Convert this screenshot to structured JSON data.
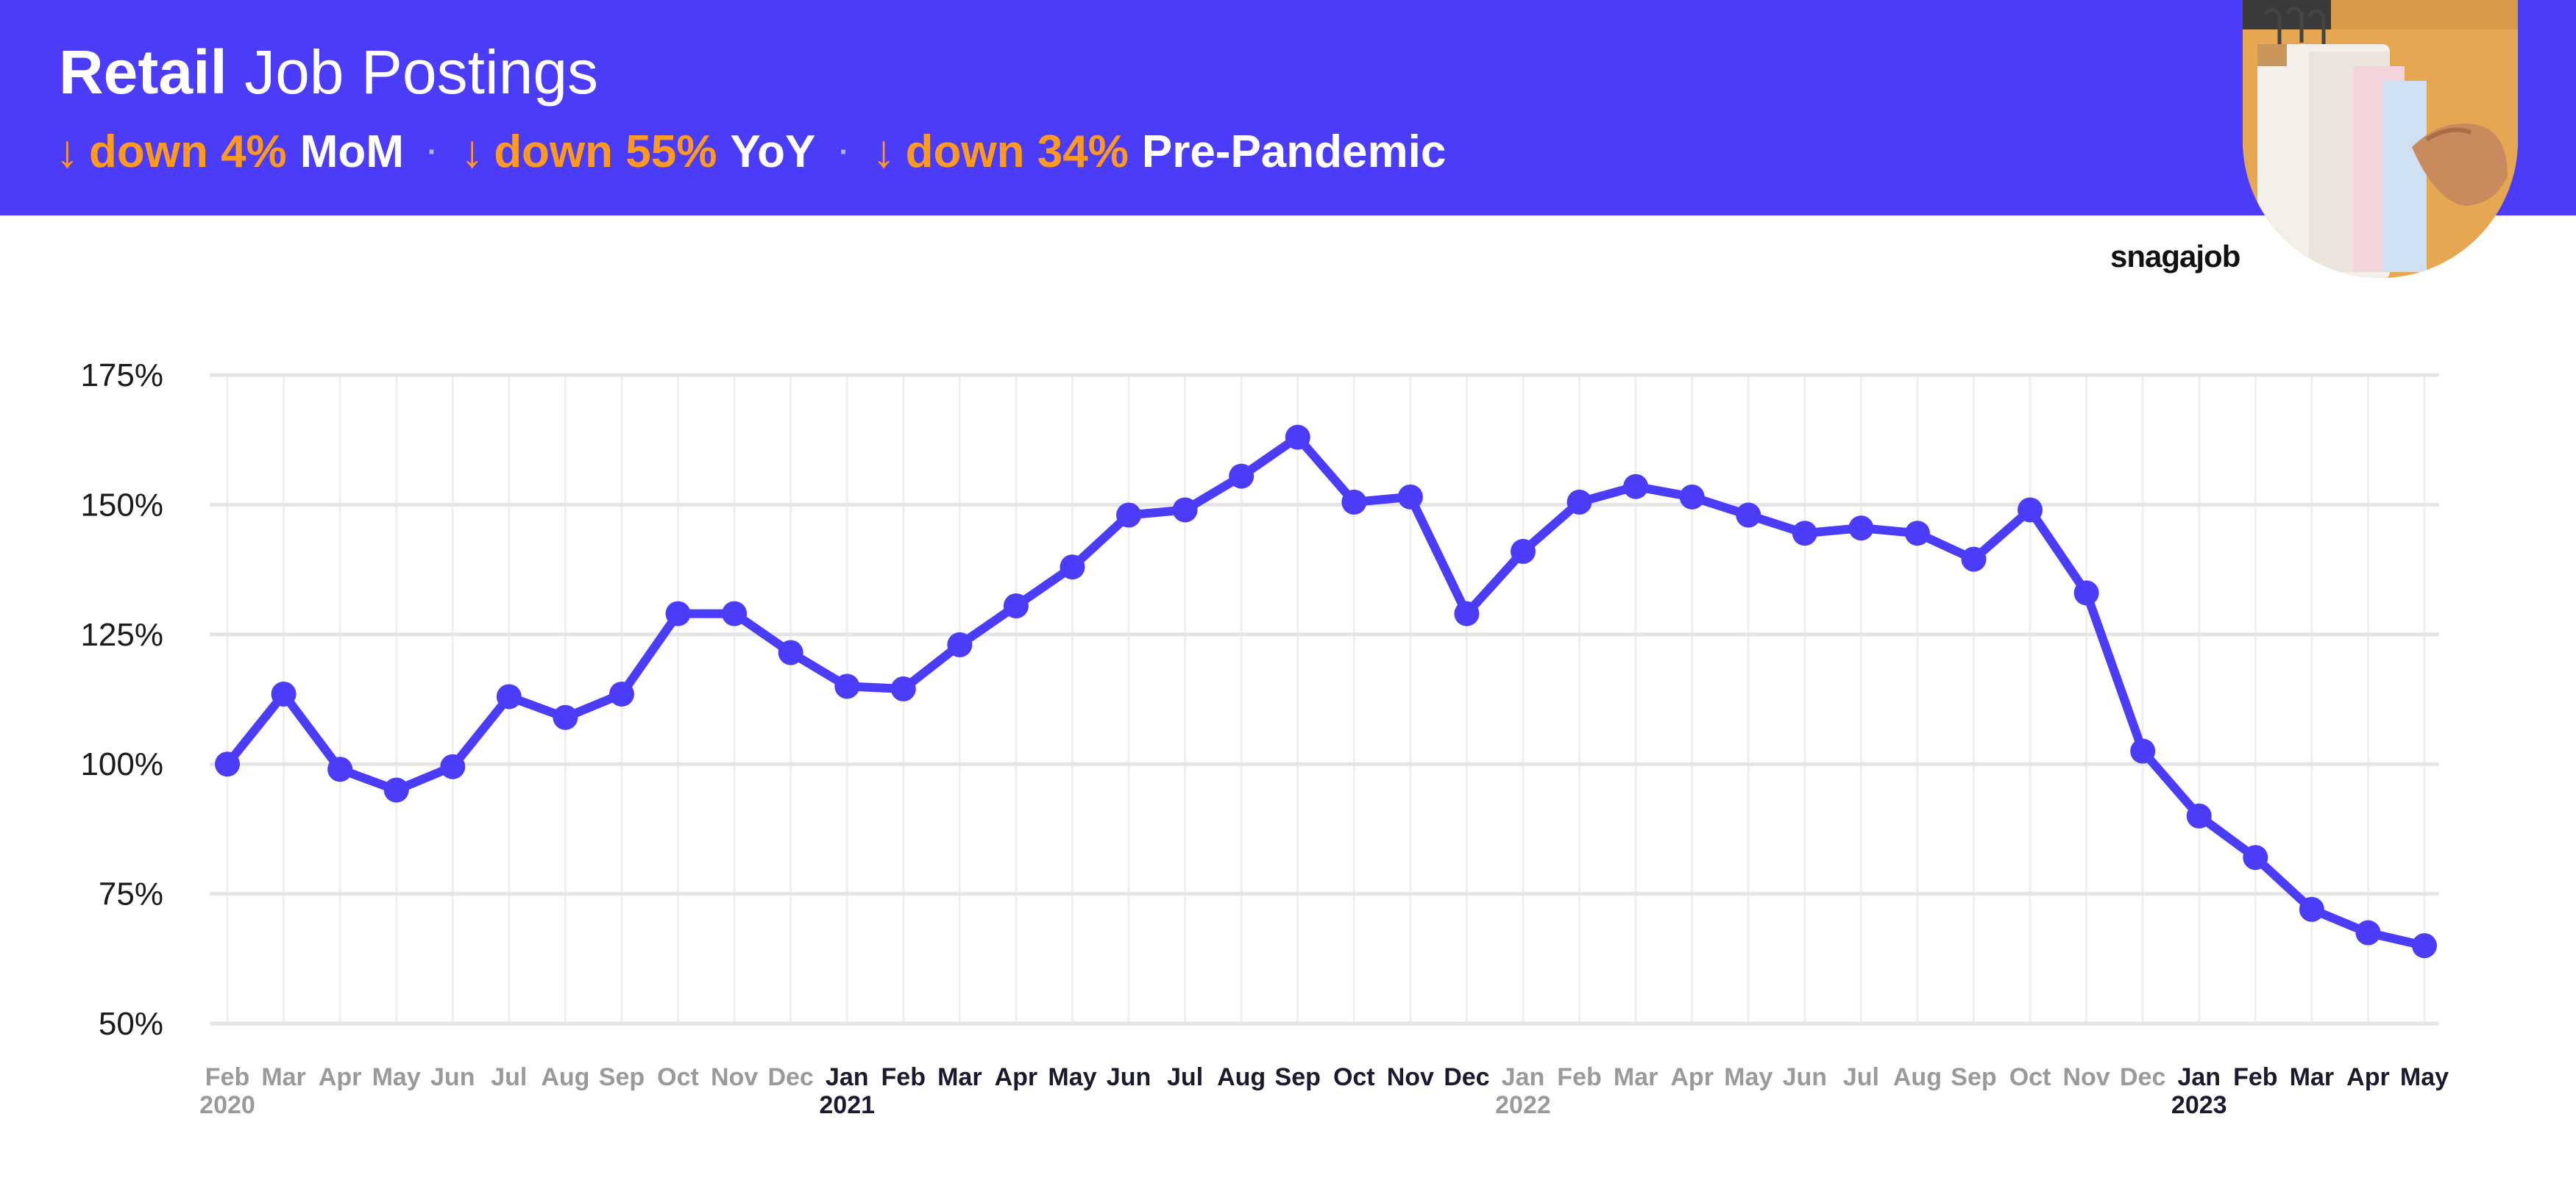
{
  "header": {
    "title_strong": "Retail",
    "title_light": "Job Postings",
    "stats": [
      {
        "arrow": "↓",
        "change": "down 4%",
        "label": "MoM"
      },
      {
        "arrow": "↓",
        "change": "down 55%",
        "label": "YoY"
      },
      {
        "arrow": "↓",
        "change": "down 34%",
        "label": "Pre-Pandemic"
      }
    ],
    "separator": "·"
  },
  "brand": {
    "logo_text": "snagajob"
  },
  "colors": {
    "banner": "#4B3CFA",
    "accent": "#FF9A1F",
    "line": "#4B3CFA",
    "grid": "#e5e5e5",
    "month_dim": "#9a9a9a",
    "month_active": "#1a1a2e"
  },
  "chart_data": {
    "type": "line",
    "title": "",
    "xlabel": "",
    "ylabel": "",
    "ylim": [
      50,
      175
    ],
    "yticks": [
      50,
      75,
      100,
      125,
      150,
      175
    ],
    "yticks_labels": [
      "50%",
      "75%",
      "100%",
      "125%",
      "150%",
      "175%"
    ],
    "grid": true,
    "x": [
      "Feb 2020",
      "Mar 2020",
      "Apr 2020",
      "May 2020",
      "Jun 2020",
      "Jul 2020",
      "Aug 2020",
      "Sep 2020",
      "Oct 2020",
      "Nov 2020",
      "Dec 2020",
      "Jan 2021",
      "Feb 2021",
      "Mar 2021",
      "Apr 2021",
      "May 2021",
      "Jun 2021",
      "Jul 2021",
      "Aug 2021",
      "Sep 2021",
      "Oct 2021",
      "Nov 2021",
      "Dec 2021",
      "Jan 2022",
      "Feb 2022",
      "Mar 2022",
      "Apr 2022",
      "May 2022",
      "Jun 2022",
      "Jul 2022",
      "Aug 2022",
      "Sep 2022",
      "Oct 2022",
      "Nov 2022",
      "Dec 2022",
      "Jan 2023",
      "Feb 2023",
      "Mar 2023",
      "Apr 2023",
      "May 2023"
    ],
    "month_labels": [
      "Feb",
      "Mar",
      "Apr",
      "May",
      "Jun",
      "Jul",
      "Aug",
      "Sep",
      "Oct",
      "Nov",
      "Dec",
      "Jan",
      "Feb",
      "Mar",
      "Apr",
      "May",
      "Jun",
      "Jul",
      "Aug",
      "Sep",
      "Oct",
      "Nov",
      "Dec",
      "Jan",
      "Feb",
      "Mar",
      "Apr",
      "May",
      "Jun",
      "Jul",
      "Aug",
      "Sep",
      "Oct",
      "Nov",
      "Dec",
      "Jan",
      "Feb",
      "Mar",
      "Apr",
      "May"
    ],
    "month_highlight": [
      false,
      false,
      false,
      false,
      false,
      false,
      false,
      false,
      false,
      false,
      false,
      true,
      true,
      true,
      true,
      true,
      true,
      true,
      true,
      true,
      true,
      true,
      true,
      false,
      false,
      false,
      false,
      false,
      false,
      false,
      false,
      false,
      false,
      false,
      false,
      true,
      true,
      true,
      true,
      true
    ],
    "year_labels": [
      {
        "index": 0,
        "text": "2020",
        "highlight": false
      },
      {
        "index": 11,
        "text": "2021",
        "highlight": true
      },
      {
        "index": 23,
        "text": "2022",
        "highlight": false
      },
      {
        "index": 35,
        "text": "2023",
        "highlight": true
      }
    ],
    "series": [
      {
        "values": [
          100,
          113.5,
          99,
          95,
          99.5,
          113,
          109,
          113.5,
          129,
          129,
          121.5,
          115,
          114.5,
          123,
          130.5,
          138,
          148,
          149,
          155.5,
          163,
          150.5,
          151.5,
          129,
          141,
          150.5,
          153.5,
          151.5,
          148,
          144.5,
          145.5,
          144.5,
          139.5,
          149,
          133,
          102.5,
          90,
          82,
          72,
          67.5,
          65
        ]
      }
    ]
  }
}
